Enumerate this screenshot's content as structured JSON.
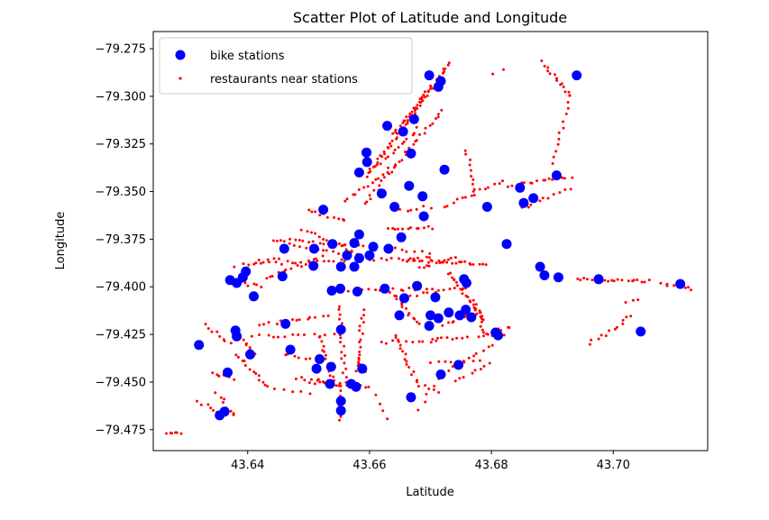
{
  "chart_data": {
    "type": "scatter",
    "title": "Scatter Plot of Latitude and Longitude",
    "xlabel": "Latitude",
    "ylabel": "Longitude",
    "xlim": [
      43.6245,
      43.7155
    ],
    "ylim": [
      -79.486,
      -79.266
    ],
    "xticks": [
      43.64,
      43.66,
      43.68,
      43.7
    ],
    "xtick_labels": [
      "43.64",
      "43.66",
      "43.68",
      "43.70"
    ],
    "yticks": [
      -79.275,
      -79.3,
      -79.325,
      -79.35,
      -79.375,
      -79.4,
      -79.425,
      -79.45,
      -79.475
    ],
    "ytick_labels": [
      "−79.275",
      "−79.300",
      "−79.325",
      "−79.350",
      "−79.375",
      "−79.400",
      "−79.425",
      "−79.450",
      "−79.475"
    ],
    "grid": false,
    "legend_position": "top-left",
    "series": [
      {
        "name": "bike stations",
        "color": "#0000ff",
        "marker": "circle-large",
        "points": [
          [
            43.6698,
            -79.289
          ],
          [
            43.6713,
            -79.295
          ],
          [
            43.6717,
            -79.292
          ],
          [
            43.694,
            -79.289
          ],
          [
            43.6673,
            -79.312
          ],
          [
            43.6655,
            -79.3185
          ],
          [
            43.6629,
            -79.3155
          ],
          [
            43.6668,
            -79.33
          ],
          [
            43.6595,
            -79.3295
          ],
          [
            43.6596,
            -79.3345
          ],
          [
            43.6583,
            -79.34
          ],
          [
            43.6723,
            -79.3385
          ],
          [
            43.6665,
            -79.347
          ],
          [
            43.6907,
            -79.3415
          ],
          [
            43.6847,
            -79.348
          ],
          [
            43.6869,
            -79.3535
          ],
          [
            43.6853,
            -79.356
          ],
          [
            43.6687,
            -79.3525
          ],
          [
            43.662,
            -79.351
          ],
          [
            43.6641,
            -79.358
          ],
          [
            43.6793,
            -79.358
          ],
          [
            43.6689,
            -79.363
          ],
          [
            43.6524,
            -79.3595
          ],
          [
            43.6539,
            -79.3775
          ],
          [
            43.6583,
            -79.3725
          ],
          [
            43.6575,
            -79.377
          ],
          [
            43.6553,
            -79.3895
          ],
          [
            43.6575,
            -79.3895
          ],
          [
            43.6583,
            -79.385
          ],
          [
            43.6563,
            -79.3835
          ],
          [
            43.66,
            -79.3835
          ],
          [
            43.6606,
            -79.379
          ],
          [
            43.6631,
            -79.38
          ],
          [
            43.6652,
            -79.374
          ],
          [
            43.6625,
            -79.401
          ],
          [
            43.658,
            -79.4025
          ],
          [
            43.6552,
            -79.401
          ],
          [
            43.6538,
            -79.402
          ],
          [
            43.6508,
            -79.389
          ],
          [
            43.6509,
            -79.38
          ],
          [
            43.646,
            -79.38
          ],
          [
            43.6457,
            -79.3945
          ],
          [
            43.6397,
            -79.392
          ],
          [
            43.6392,
            -79.395
          ],
          [
            43.6382,
            -79.398
          ],
          [
            43.6371,
            -79.3965
          ],
          [
            43.641,
            -79.405
          ],
          [
            43.6678,
            -79.3995
          ],
          [
            43.6708,
            -79.4055
          ],
          [
            43.67,
            -79.415
          ],
          [
            43.6713,
            -79.4165
          ],
          [
            43.673,
            -79.4135
          ],
          [
            43.6748,
            -79.415
          ],
          [
            43.6758,
            -79.412
          ],
          [
            43.6755,
            -79.396
          ],
          [
            43.6759,
            -79.398
          ],
          [
            43.6657,
            -79.406
          ],
          [
            43.6649,
            -79.415
          ],
          [
            43.6698,
            -79.4205
          ],
          [
            43.6767,
            -79.416
          ],
          [
            43.6807,
            -79.424
          ],
          [
            43.6811,
            -79.4255
          ],
          [
            43.6825,
            -79.3775
          ],
          [
            43.688,
            -79.3895
          ],
          [
            43.6887,
            -79.394
          ],
          [
            43.691,
            -79.395
          ],
          [
            43.6976,
            -79.396
          ],
          [
            43.711,
            -79.3985
          ],
          [
            43.7045,
            -79.4235
          ],
          [
            43.6746,
            -79.441
          ],
          [
            43.6717,
            -79.446
          ],
          [
            43.6668,
            -79.458
          ],
          [
            43.647,
            -79.433
          ],
          [
            43.6462,
            -79.4195
          ],
          [
            43.6404,
            -79.4355
          ],
          [
            43.6382,
            -79.426
          ],
          [
            43.638,
            -79.423
          ],
          [
            43.6367,
            -79.445
          ],
          [
            43.6362,
            -79.4655
          ],
          [
            43.6354,
            -79.4675
          ],
          [
            43.632,
            -79.4305
          ],
          [
            43.6553,
            -79.4225
          ],
          [
            43.6578,
            -79.4525
          ],
          [
            43.657,
            -79.451
          ],
          [
            43.6588,
            -79.443
          ],
          [
            43.6535,
            -79.451
          ],
          [
            43.6553,
            -79.46
          ],
          [
            43.6553,
            -79.465
          ],
          [
            43.6537,
            -79.442
          ],
          [
            43.6518,
            -79.438
          ],
          [
            43.6513,
            -79.443
          ]
        ]
      },
      {
        "name": "restaurants near stations",
        "color": "#ff0000",
        "marker": "dot-small"
      }
    ]
  }
}
